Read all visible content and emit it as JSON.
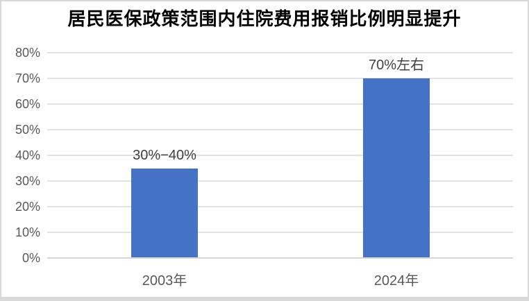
{
  "chart_data": {
    "type": "bar",
    "title": "居民医保政策范围内住院费用报销比例明显提升",
    "categories": [
      "2003年",
      "2024年"
    ],
    "values": [
      35,
      70
    ],
    "data_labels": [
      "30%−40%",
      "70%左右"
    ],
    "ylim": [
      0,
      80
    ],
    "ytick_step": 10,
    "yticks": [
      "0%",
      "10%",
      "20%",
      "30%",
      "40%",
      "50%",
      "60%",
      "70%",
      "80%"
    ],
    "xlabel": "",
    "ylabel": "",
    "grid": true,
    "legend_position": "none",
    "colors": {
      "bar": "#4472C4",
      "gridline": "#E2E2E2",
      "axis_line": "#D6D6D6",
      "tick_label": "#595959",
      "data_label": "#404040",
      "title": "#000000",
      "frame_border": "#D9D9D9",
      "background": "#FFFFFF"
    }
  }
}
